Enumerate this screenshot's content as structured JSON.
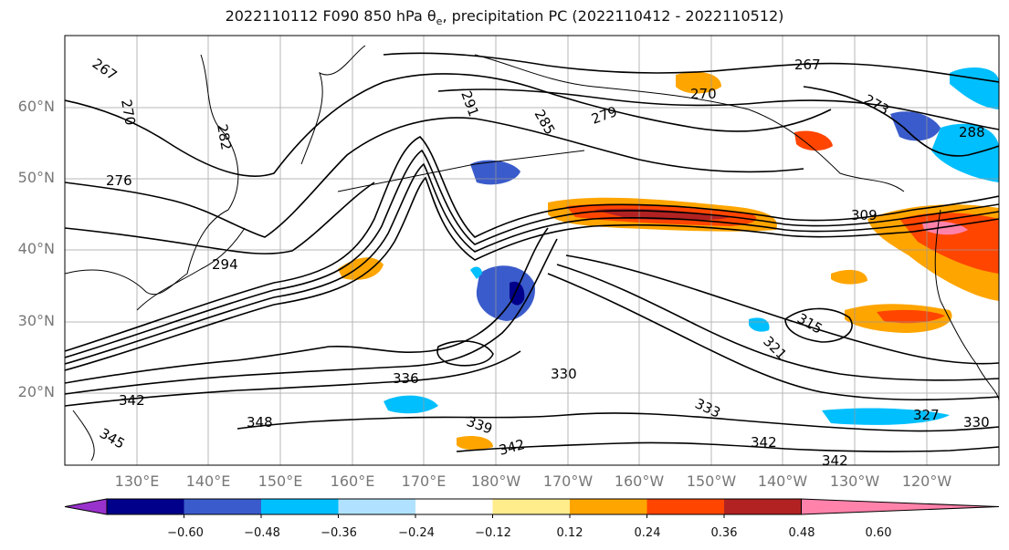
{
  "title": "2022110112 F090 850 hPa θ",
  "title_sub": "e",
  "title_rest": ", precipitation PC (2022110412 - 2022110512)",
  "lat_labels": [
    "60°N",
    "50°N",
    "40°N",
    "30°N",
    "20°N"
  ],
  "lon_labels": [
    "130°E",
    "140°E",
    "150°E",
    "160°E",
    "170°E",
    "180°W",
    "170°W",
    "160°W",
    "150°W",
    "140°W",
    "130°W",
    "120°W"
  ],
  "colorbar": {
    "colors": [
      "#9932CC",
      "#00008B",
      "#3A5BCB",
      "#00BFFF",
      "#B0E2FF",
      "#FFFFFF",
      "#FFEC8B",
      "#FFA500",
      "#FF4500",
      "#B22222",
      "#FF82AB"
    ],
    "tick_labels": [
      "−0.60",
      "−0.48",
      "−0.36",
      "−0.24",
      "−0.12",
      "0.12",
      "0.24",
      "0.36",
      "0.48",
      "0.60"
    ]
  },
  "contour_labels": [
    "267",
    "270",
    "276",
    "282",
    "285",
    "291",
    "279",
    "294",
    "342",
    "345",
    "348",
    "336",
    "339",
    "330",
    "333",
    "342",
    "342",
    "342",
    "327",
    "330",
    "288",
    "273",
    "267",
    "270",
    "309",
    "321",
    "315"
  ],
  "colors": {
    "contour": "#000000",
    "grid": "#999999",
    "coast": "#000000"
  }
}
